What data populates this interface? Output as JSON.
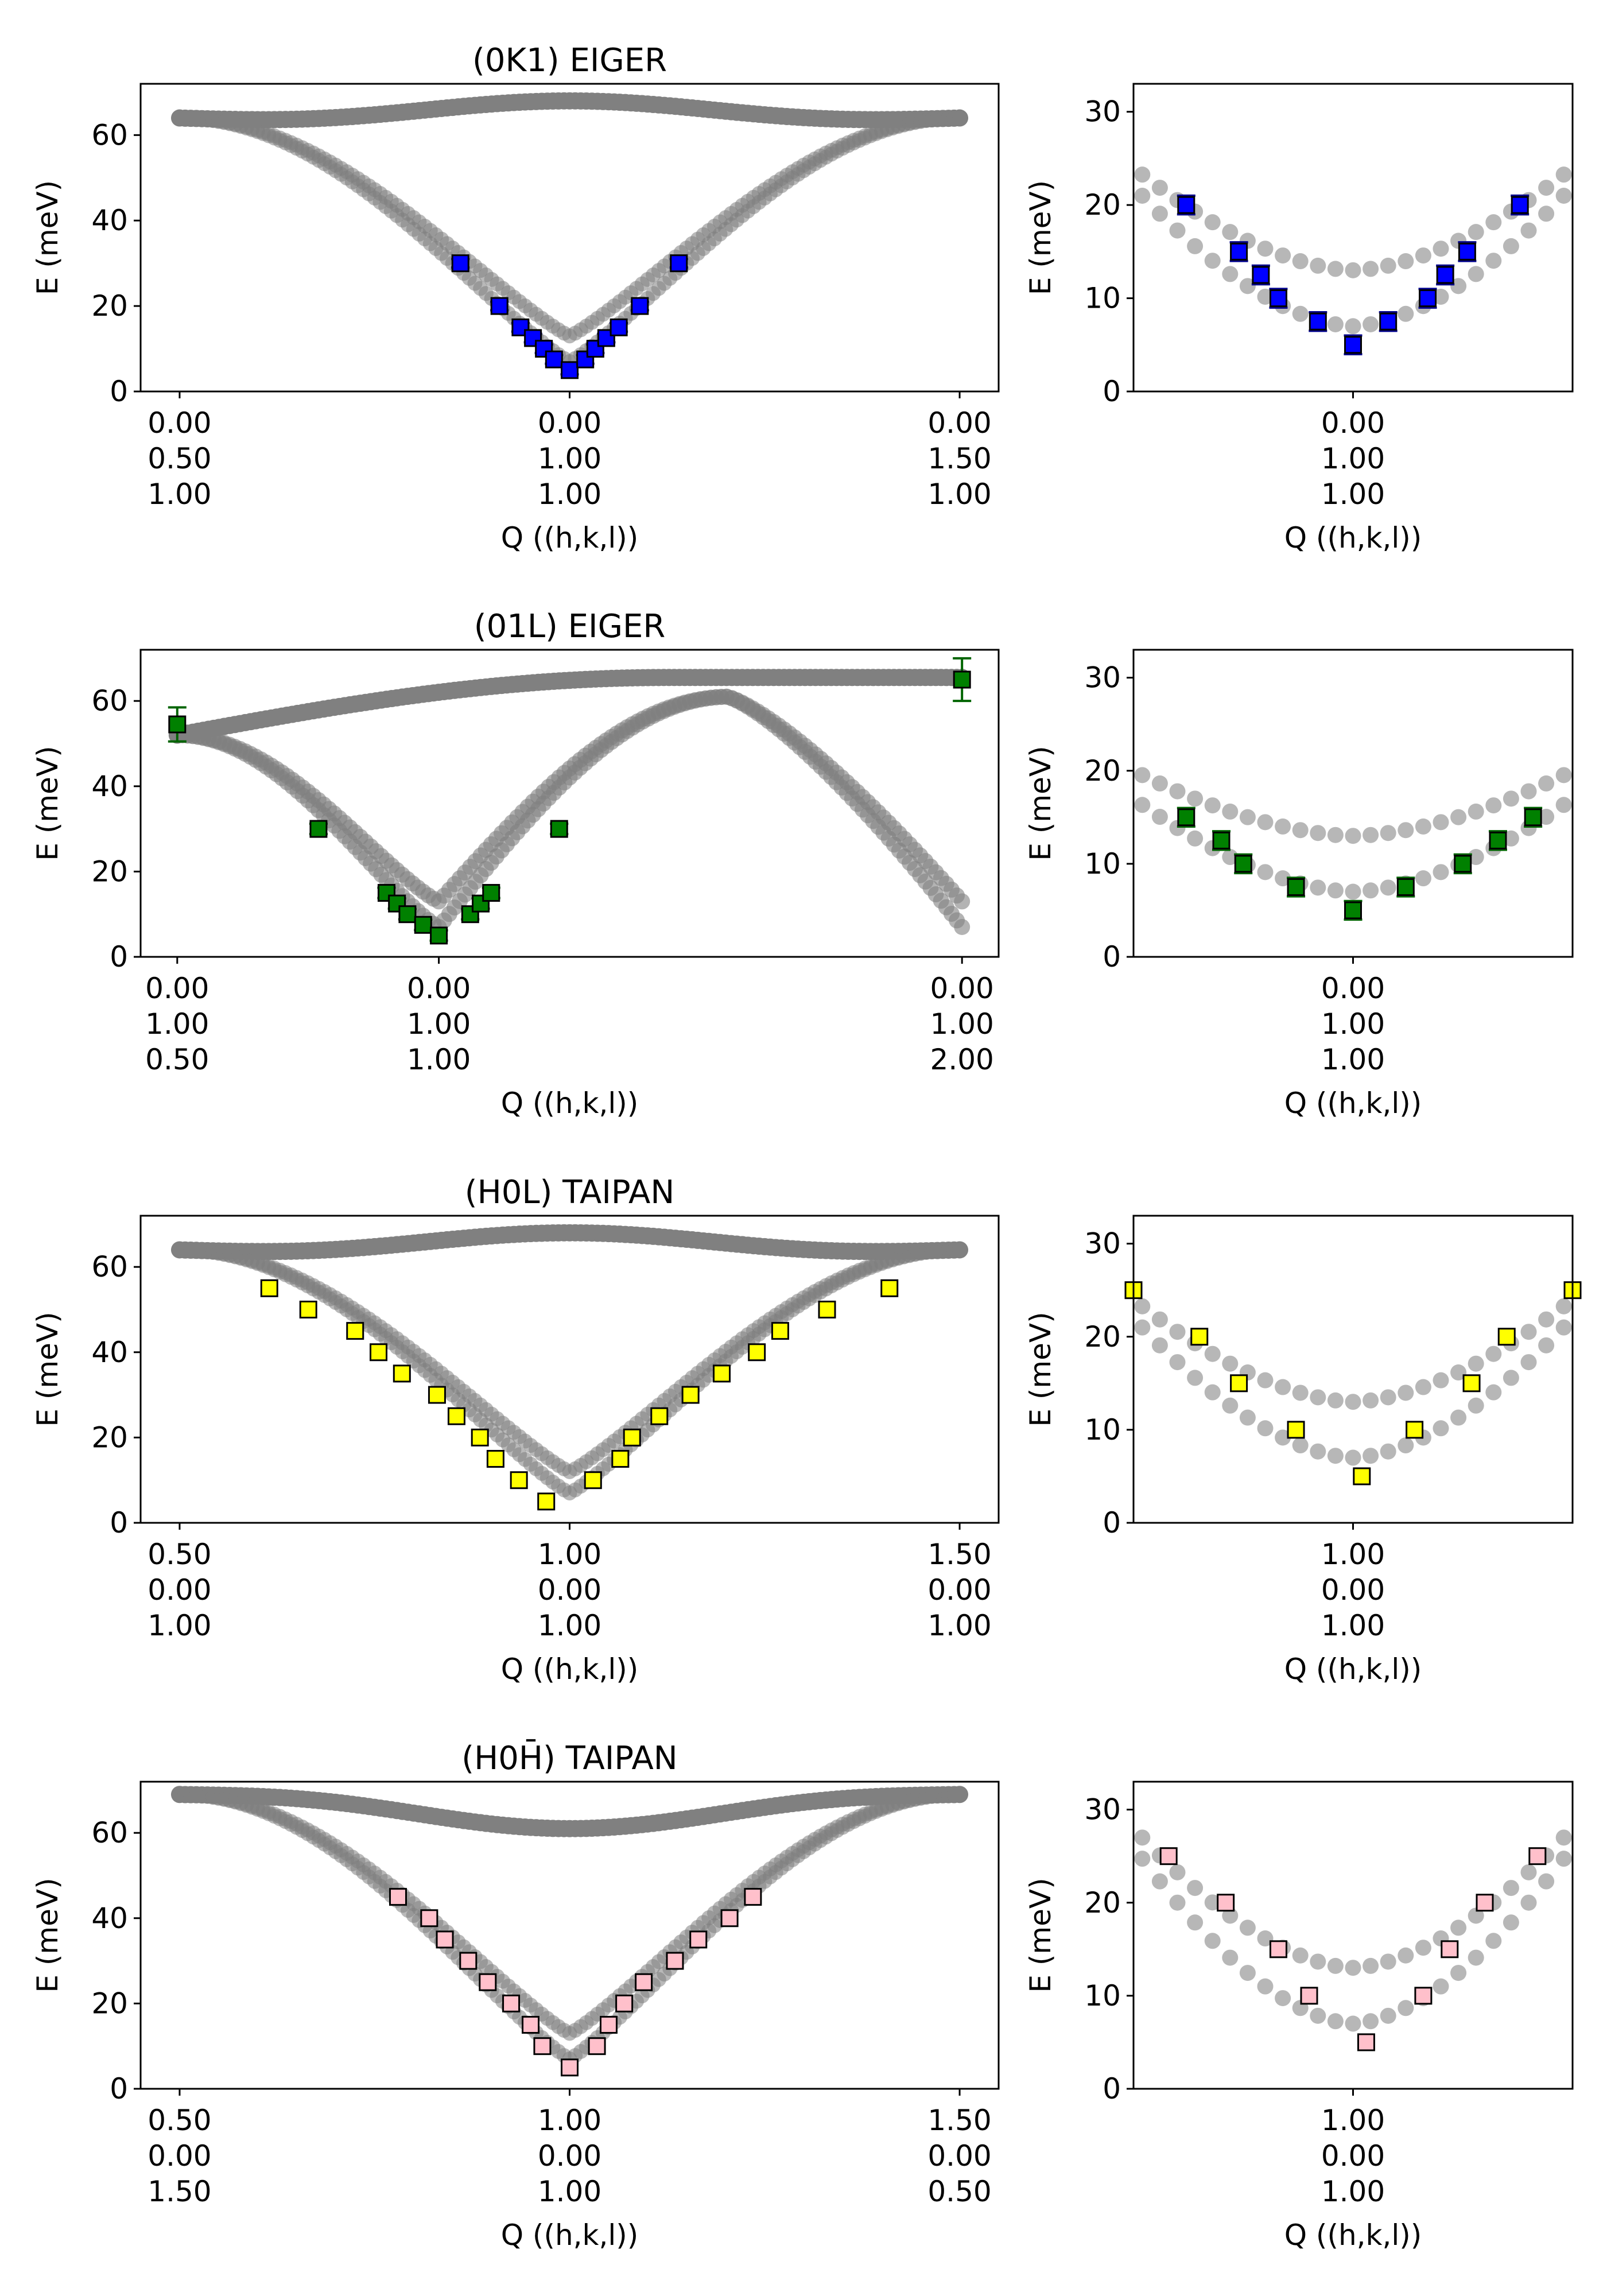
{
  "figure": {
    "panel_titles": [
      "(0K1) EIGER",
      "(01L) EIGER",
      "(H0L) TAIPAN",
      "(H0H̄) TAIPAN"
    ],
    "ylabel": "E (meV)",
    "xlabel": "Q ((h,k,l))"
  },
  "chart_data": [
    {
      "type": "scatter",
      "title": "(0K1) EIGER",
      "xlabel": "Q ((h,k,l))",
      "ylabel": "E (meV)",
      "xlim": [
        -0.05,
        1.05
      ],
      "ylim": [
        0,
        72
      ],
      "yticks": [
        0,
        20,
        40,
        60
      ],
      "xticks": [
        {
          "x": 0,
          "lines": [
            "0.00",
            "0.50",
            "1.00"
          ]
        },
        {
          "x": 0.5,
          "lines": [
            "0.00",
            "1.00",
            "1.00"
          ]
        },
        {
          "x": 1,
          "lines": [
            "0.00",
            "1.50",
            "1.00"
          ]
        }
      ],
      "grid": false,
      "model": {
        "type": "loop",
        "band_color": "#808080",
        "ends": [
          64,
          64
        ],
        "upper_mid": 65,
        "upper_bulge": 3,
        "lower_min": [
          7,
          13
        ],
        "center": 0.5,
        "shape": "v"
      },
      "series": [
        {
          "marker": "square",
          "color": "#0000ff",
          "errorbars": true,
          "x": [
            0.36,
            0.41,
            0.437,
            0.453,
            0.467,
            0.48,
            0.5,
            0.52,
            0.533,
            0.547,
            0.563,
            0.59,
            0.64
          ],
          "y": [
            30,
            20,
            15,
            12.5,
            10,
            7.5,
            5,
            7.5,
            10,
            12.5,
            15,
            20,
            30
          ]
        }
      ]
    },
    {
      "type": "scatter",
      "title": "",
      "xlabel": "Q ((h,k,l))",
      "ylabel": "E (meV)",
      "xlim": [
        -0.5,
        0.5
      ],
      "ylim": [
        0,
        33
      ],
      "yticks": [
        0,
        10,
        20,
        30
      ],
      "xticks": [
        {
          "x": 0,
          "lines": [
            "0.00",
            "1.00",
            "1.00"
          ]
        }
      ],
      "grid": false,
      "model": {
        "type": "zoom",
        "curve_color": "#aaaaaa",
        "upper_min": 13,
        "lower_min": 7,
        "upper_edge": 24,
        "lower_edge": 22
      },
      "series": [
        {
          "marker": "square",
          "color": "#0000ff",
          "errorbars": true,
          "x": [
            -0.38,
            -0.26,
            -0.21,
            -0.17,
            -0.08,
            0,
            0.08,
            0.17,
            0.21,
            0.26,
            0.38
          ],
          "y": [
            20,
            15,
            12.5,
            10,
            7.5,
            5,
            7.5,
            10,
            12.5,
            15,
            20
          ]
        }
      ]
    },
    {
      "type": "scatter",
      "title": "(01L) EIGER",
      "xlabel": "Q ((h,k,l))",
      "ylabel": "E (meV)",
      "xlim": [
        0.43,
        2.07
      ],
      "ylim": [
        0,
        72
      ],
      "yticks": [
        0,
        20,
        40,
        60
      ],
      "xticks": [
        {
          "x": 0.5,
          "lines": [
            "0.00",
            "1.00",
            "0.50"
          ]
        },
        {
          "x": 1,
          "lines": [
            "0.00",
            "1.00",
            "1.00"
          ]
        },
        {
          "x": 2,
          "lines": [
            "0.00",
            "1.00",
            "2.00"
          ]
        }
      ],
      "grid": false,
      "model": {
        "type": "cross",
        "band_color": "#808080",
        "start": 52,
        "center": 1.0,
        "end_low": [
          7,
          13
        ],
        "end_high": 65,
        "plateau": 65
      },
      "series": [
        {
          "marker": "square",
          "color": "#008000",
          "errorbars": true,
          "x": [
            0.5,
            0.77,
            0.9,
            0.92,
            0.94,
            0.97,
            1.0,
            1.06,
            1.08,
            1.1,
            1.23,
            2.0
          ],
          "y": [
            54.5,
            30,
            15,
            12.5,
            10,
            7.5,
            5,
            10,
            12.5,
            15,
            30,
            65
          ],
          "yerr": [
            4,
            1.2,
            1.2,
            1.2,
            1.2,
            1.2,
            1.2,
            1.2,
            1.2,
            1.2,
            1.2,
            5
          ]
        }
      ]
    },
    {
      "type": "scatter",
      "title": "",
      "xlabel": "Q ((h,k,l))",
      "ylabel": "E (meV)",
      "xlim": [
        -0.5,
        0.5
      ],
      "ylim": [
        0,
        33
      ],
      "yticks": [
        0,
        10,
        20,
        30
      ],
      "xticks": [
        {
          "x": 0,
          "lines": [
            "0.00",
            "1.00",
            "1.00"
          ]
        }
      ],
      "grid": false,
      "model": {
        "type": "zoom",
        "curve_color": "#aaaaaa",
        "upper_min": 13,
        "lower_min": 7,
        "upper_edge": 20,
        "lower_edge": 17
      },
      "series": [
        {
          "marker": "square",
          "color": "#008000",
          "errorbars": true,
          "x": [
            -0.38,
            -0.3,
            -0.25,
            -0.13,
            0,
            0.12,
            0.25,
            0.33,
            0.41
          ],
          "y": [
            15,
            12.5,
            10,
            7.5,
            5,
            7.5,
            10,
            12.5,
            15
          ]
        }
      ]
    },
    {
      "type": "scatter",
      "title": "(H0L) TAIPAN",
      "xlabel": "Q ((h,k,l))",
      "ylabel": "E (meV)",
      "xlim": [
        0.45,
        1.55
      ],
      "ylim": [
        0,
        72
      ],
      "yticks": [
        0,
        20,
        40,
        60
      ],
      "xticks": [
        {
          "x": 0.5,
          "lines": [
            "0.50",
            "0.00",
            "1.00"
          ]
        },
        {
          "x": 1,
          "lines": [
            "1.00",
            "0.00",
            "1.00"
          ]
        },
        {
          "x": 1.5,
          "lines": [
            "1.50",
            "0.00",
            "1.00"
          ]
        }
      ],
      "grid": false,
      "model": {
        "type": "loop",
        "band_color": "#808080",
        "ends": [
          64,
          64
        ],
        "upper_mid": 65,
        "upper_bulge": 3,
        "lower_min": [
          7,
          12
        ],
        "center": 1.0,
        "shape": "v"
      },
      "series": [
        {
          "marker": "square",
          "color": "#ffff00",
          "errorbars": false,
          "x": [
            0.615,
            0.665,
            0.725,
            0.755,
            0.785,
            0.83,
            0.855,
            0.885,
            0.905,
            0.935,
            0.97,
            1.03,
            1.065,
            1.08,
            1.115,
            1.155,
            1.195,
            1.24,
            1.27,
            1.33,
            1.41
          ],
          "y": [
            55,
            50,
            45,
            40,
            35,
            30,
            25,
            20,
            15,
            10,
            5,
            10,
            15,
            20,
            25,
            30,
            35,
            40,
            45,
            50,
            55
          ]
        }
      ]
    },
    {
      "type": "scatter",
      "title": "",
      "xlabel": "Q ((h,k,l))",
      "ylabel": "E (meV)",
      "xlim": [
        -0.5,
        0.5
      ],
      "ylim": [
        0,
        33
      ],
      "yticks": [
        0,
        10,
        20,
        30
      ],
      "xticks": [
        {
          "x": 0,
          "lines": [
            "1.00",
            "0.00",
            "1.00"
          ]
        }
      ],
      "grid": false,
      "model": {
        "type": "zoom",
        "curve_color": "#aaaaaa",
        "upper_min": 13,
        "lower_min": 7,
        "upper_edge": 24,
        "lower_edge": 22
      },
      "series": [
        {
          "marker": "square",
          "color": "#ffff00",
          "errorbars": false,
          "x": [
            -0.5,
            -0.35,
            -0.26,
            -0.13,
            0.02,
            0.14,
            0.27,
            0.35,
            0.5
          ],
          "y": [
            25,
            20,
            15,
            10,
            5,
            10,
            15,
            20,
            25
          ]
        }
      ]
    },
    {
      "type": "scatter",
      "title": "(H0H̄) TAIPAN",
      "xlabel": "Q ((h,k,l))",
      "ylabel": "E (meV)",
      "xlim": [
        0.45,
        1.55
      ],
      "ylim": [
        0,
        72
      ],
      "yticks": [
        0,
        20,
        40,
        60
      ],
      "xticks": [
        {
          "x": 0.5,
          "lines": [
            "0.50",
            "0.00",
            "1.50"
          ]
        },
        {
          "x": 1,
          "lines": [
            "1.00",
            "0.00",
            "1.00"
          ]
        },
        {
          "x": 1.5,
          "lines": [
            "1.50",
            "0.00",
            "0.50"
          ]
        }
      ],
      "grid": false,
      "model": {
        "type": "loop",
        "band_color": "#808080",
        "ends": [
          69,
          69
        ],
        "upper_mid": 65,
        "upper_bulge": -4,
        "lower_min": [
          7,
          13
        ],
        "center": 1.0,
        "shape": "v"
      },
      "series": [
        {
          "marker": "square",
          "color": "#ffc0cb",
          "errorbars": false,
          "x": [
            0.78,
            0.82,
            0.84,
            0.87,
            0.895,
            0.925,
            0.95,
            0.965,
            1.0,
            1.035,
            1.05,
            1.07,
            1.095,
            1.135,
            1.165,
            1.205,
            1.235
          ],
          "y": [
            45,
            40,
            35,
            30,
            25,
            20,
            15,
            10,
            5,
            10,
            15,
            20,
            25,
            30,
            35,
            40,
            45
          ]
        }
      ]
    },
    {
      "type": "scatter",
      "title": "",
      "xlabel": "Q ((h,k,l))",
      "ylabel": "E (meV)",
      "xlim": [
        -0.5,
        0.5
      ],
      "ylim": [
        0,
        33
      ],
      "yticks": [
        0,
        10,
        20,
        30
      ],
      "xticks": [
        {
          "x": 0,
          "lines": [
            "1.00",
            "0.00",
            "1.00"
          ]
        }
      ],
      "grid": false,
      "model": {
        "type": "zoom",
        "curve_color": "#aaaaaa",
        "upper_min": 13,
        "lower_min": 7,
        "upper_edge": 28,
        "lower_edge": 26
      },
      "series": [
        {
          "marker": "square",
          "color": "#ffc0cb",
          "errorbars": false,
          "x": [
            -0.42,
            -0.29,
            -0.17,
            -0.1,
            0.03,
            0.16,
            0.22,
            0.3,
            0.42
          ],
          "y": [
            25,
            20,
            15,
            10,
            5,
            10,
            15,
            20,
            25
          ]
        }
      ]
    }
  ]
}
